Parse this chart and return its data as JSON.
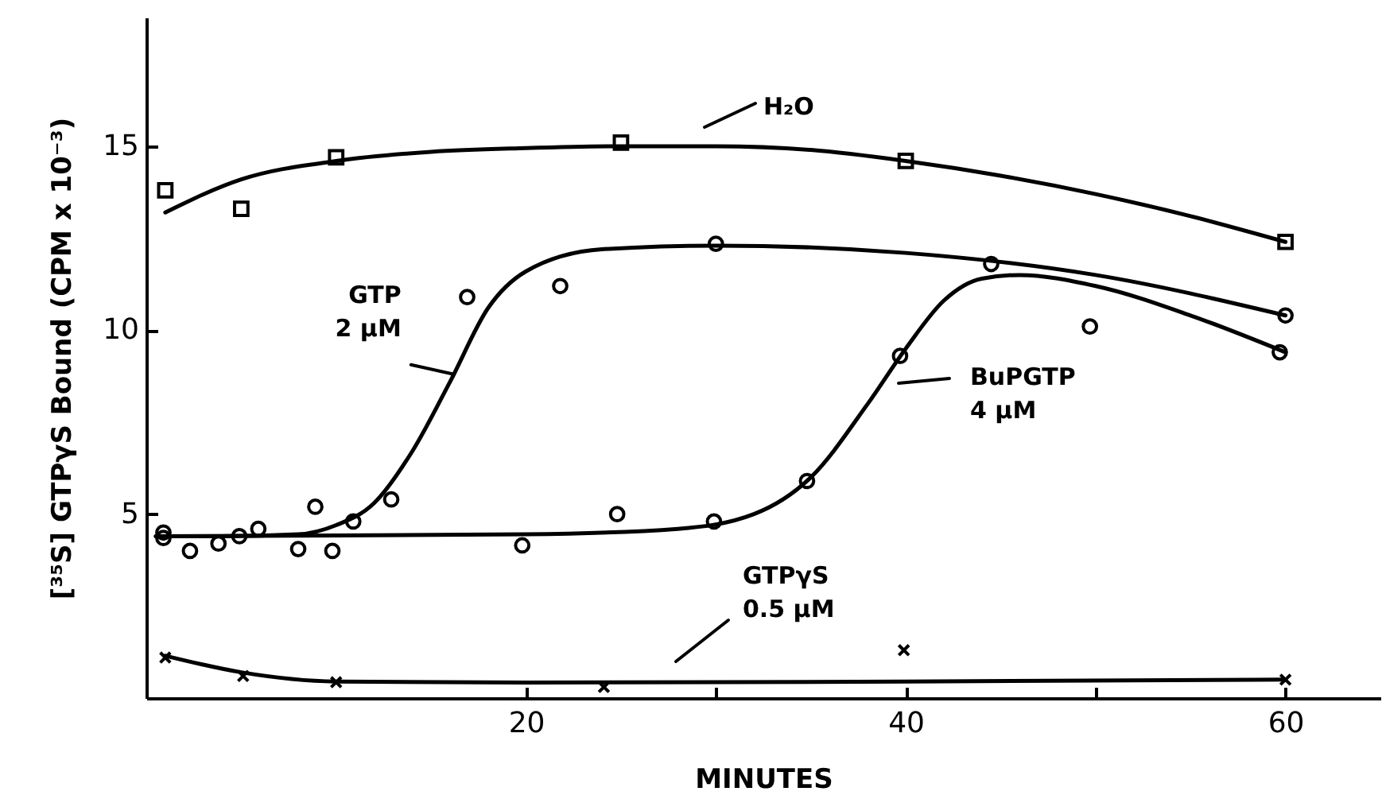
{
  "chart_data": {
    "type": "scatter",
    "xlabel": "MINUTES",
    "ylabel": "[³⁵S] GTPγS Bound (CPM x 10⁻³)",
    "xlim": [
      0,
      65
    ],
    "ylim": [
      0,
      18.5
    ],
    "xticks": [
      20,
      {
        "value": 30,
        "label": null
      },
      40,
      {
        "value": 50,
        "label": null
      },
      60
    ],
    "yticks": [
      5,
      10,
      15
    ],
    "grid": false,
    "series": [
      {
        "marker": "square",
        "color": "#000000",
        "x": [
          1,
          5,
          10,
          25,
          40,
          60
        ],
        "values": [
          13.8,
          13.3,
          14.7,
          15.1,
          14.6,
          12.4
        ]
      },
      {
        "type": "line",
        "marker": "none",
        "color": "#000000",
        "x": [
          1,
          5,
          10,
          15,
          20,
          25,
          30,
          35,
          40,
          45,
          50,
          55,
          60
        ],
        "values": [
          13.2,
          14.1,
          14.6,
          14.85,
          14.95,
          15.0,
          15.0,
          14.9,
          14.6,
          14.2,
          13.7,
          13.1,
          12.4
        ]
      },
      {
        "marker": "circle",
        "color": "#000000",
        "x": [
          0.9,
          0.9,
          2.3,
          3.8,
          5.9,
          8,
          8.9,
          10.9,
          12.9,
          16.9,
          21.8,
          30,
          60
        ],
        "values": [
          4.5,
          4.35,
          4.0,
          4.2,
          4.6,
          4.05,
          5.2,
          4.8,
          5.4,
          10.9,
          11.2,
          12.35,
          10.4
        ]
      },
      {
        "type": "line",
        "marker": "none",
        "color": "#000000",
        "x": [
          0.5,
          4,
          8,
          10,
          12,
          14,
          16,
          18,
          20,
          24,
          30,
          40,
          50,
          60
        ],
        "values": [
          4.4,
          4.4,
          4.45,
          4.7,
          5.3,
          6.7,
          8.6,
          10.6,
          11.6,
          12.2,
          12.3,
          12.1,
          11.5,
          10.4
        ]
      },
      {
        "marker": "circle",
        "color": "#000000",
        "x": [
          4.9,
          9.8,
          19.8,
          24.8,
          29.9,
          34.8,
          39.7,
          44.5,
          49.7,
          59.7
        ],
        "values": [
          4.4,
          4.0,
          4.15,
          5.0,
          4.8,
          5.9,
          9.3,
          11.8,
          10.1,
          9.4
        ]
      },
      {
        "type": "line",
        "marker": "none",
        "color": "#000000",
        "x": [
          0.5,
          10,
          20,
          28,
          32,
          35,
          38,
          40,
          42,
          44,
          46,
          50,
          55,
          60
        ],
        "values": [
          4.4,
          4.42,
          4.45,
          4.6,
          5.0,
          6.0,
          8.0,
          9.5,
          10.8,
          11.4,
          11.5,
          11.2,
          10.4,
          9.4
        ]
      },
      {
        "marker": "cross",
        "color": "#000000",
        "x": [
          1,
          5.1,
          10,
          24.1,
          39.9,
          60
        ],
        "values": [
          1.1,
          0.6,
          0.43,
          0.3,
          1.3,
          0.5
        ]
      },
      {
        "type": "line",
        "marker": "none",
        "color": "#000000",
        "x": [
          1,
          5,
          10,
          20,
          40,
          60
        ],
        "values": [
          1.15,
          0.7,
          0.45,
          0.42,
          0.45,
          0.5
        ]
      }
    ],
    "annotations": [
      "H₂O",
      {
        "text": "GTP\n2 µM",
        "x": 16.2,
        "y": 8.8
      },
      "BuPGTP\n4 µM",
      "GTPγS\n0.5 µM"
    ]
  }
}
